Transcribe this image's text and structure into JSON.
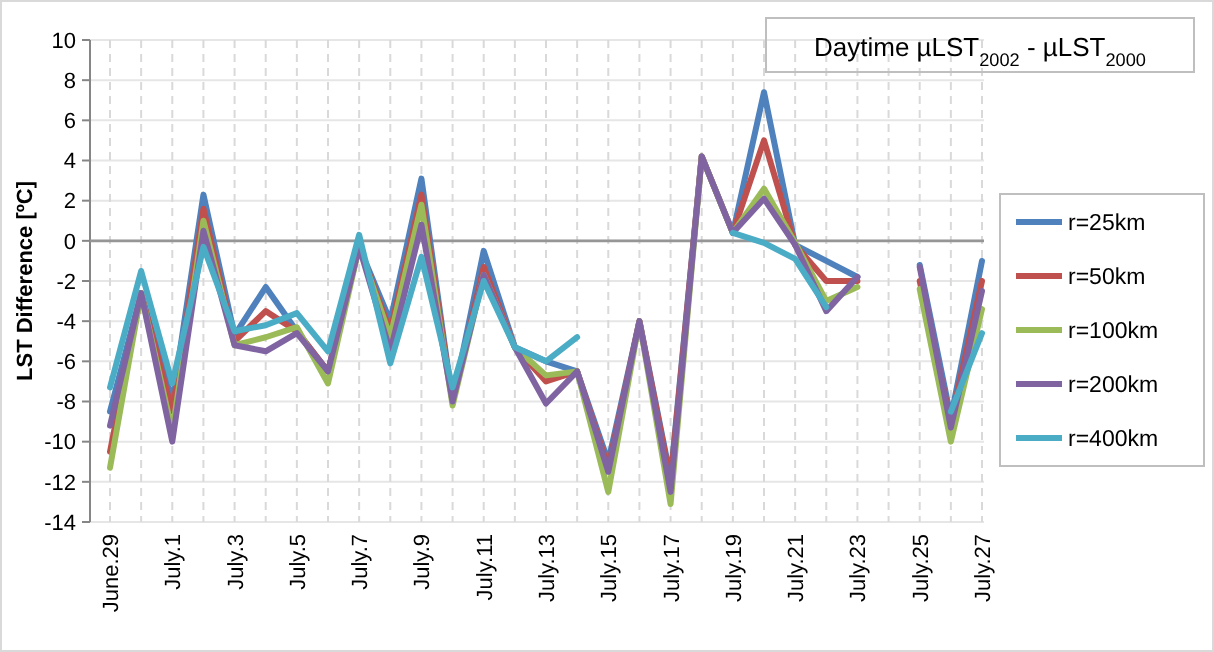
{
  "chart_data": {
    "type": "line",
    "title": "Daytime µLST$_{2002}$ - µLST$_{2000}$",
    "ylabel": "LST Difference [ºC]",
    "categories": [
      "June.29",
      null,
      "July.1",
      null,
      "July.3",
      null,
      "July.5",
      null,
      "July.7",
      null,
      "July.9",
      null,
      "July.11",
      null,
      "July.13",
      null,
      "July.15",
      null,
      "July.17",
      null,
      "July.19",
      null,
      "July.21",
      null,
      "July.23",
      null,
      "July.25",
      null,
      "July.27"
    ],
    "series": [
      {
        "name": "r=25km",
        "color": "#4f81bd",
        "values": [
          -8.5,
          -2.6,
          -8,
          2.3,
          -4.7,
          -2.3,
          -4.5,
          -6.5,
          -0.3,
          -4,
          3.1,
          -8,
          -0.5,
          -5.3,
          -6,
          -6.5,
          -11,
          -4,
          -11.8,
          4.2,
          0.4,
          7.4,
          -0.2,
          -1,
          -1.8,
          null,
          -1.2,
          -8.8,
          -1
        ]
      },
      {
        "name": "r=50km",
        "color": "#c0504d",
        "values": [
          -10.5,
          -2.6,
          -8.5,
          1.6,
          -5,
          -3.5,
          -4.5,
          -6.5,
          -0.3,
          -4.5,
          2.3,
          -8,
          -1.3,
          -5.3,
          -7,
          -6.5,
          -11.3,
          -4,
          -12,
          4.2,
          0.4,
          5,
          -0.2,
          -2,
          -2,
          null,
          -2,
          -9,
          -2
        ]
      },
      {
        "name": "r=100km",
        "color": "#9bbb59",
        "values": [
          -11.3,
          -2.6,
          -9.5,
          1,
          -5.2,
          -4.8,
          -4.3,
          -7.1,
          -0.3,
          -4.8,
          1.8,
          -8.2,
          -1.7,
          -5.3,
          -6.7,
          -6.5,
          -12.5,
          -4,
          -13.1,
          4.2,
          0.4,
          2.6,
          -0.1,
          -3,
          -2.3,
          null,
          -2.4,
          -10,
          -3.4
        ]
      },
      {
        "name": "r=200km",
        "color": "#8064a2",
        "values": [
          -9.2,
          -2.6,
          -10,
          0.5,
          -5.2,
          -5.5,
          -4.6,
          -6.5,
          -0.3,
          -5.5,
          0.8,
          -8,
          -1.7,
          -5.3,
          -8.1,
          -6.5,
          -11.5,
          -4,
          -12.5,
          4.2,
          0.4,
          2.1,
          -0.2,
          -3.5,
          -1.8,
          null,
          -1.3,
          -9.3,
          -2.5
        ]
      },
      {
        "name": "r=400km",
        "color": "#4bacc6",
        "values": [
          -7.3,
          -1.5,
          -7.1,
          -0.3,
          -4.5,
          -4.2,
          -3.6,
          -5.5,
          0.3,
          -6.1,
          -0.8,
          -7.3,
          -2,
          -5.3,
          -6,
          -4.8,
          null,
          null,
          null,
          null,
          0.4,
          -0.1,
          -0.9,
          -3.3,
          null,
          null,
          null,
          -8.5,
          -4.6
        ]
      }
    ],
    "ylim": [
      -14,
      10
    ],
    "yticks": [
      -14,
      -12,
      -10,
      -8,
      -6,
      -4,
      -2,
      0,
      2,
      4,
      6,
      8,
      10
    ],
    "grid": true,
    "legend": "right",
    "line_style": "solid",
    "marker": "none"
  }
}
